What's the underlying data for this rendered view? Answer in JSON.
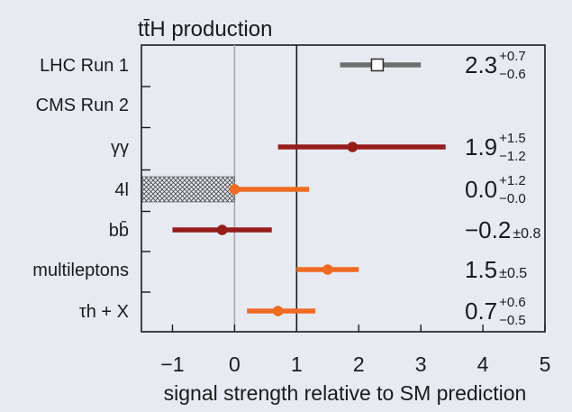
{
  "chart_data": {
    "type": "scatter",
    "title": "tt̄H production",
    "xlabel": "signal strength relative to SM prediction",
    "ylabel": "",
    "xlim": [
      -1.5,
      5
    ],
    "x_ticks": [
      -1,
      0,
      1,
      2,
      3,
      4,
      5
    ],
    "x_tick_labels": [
      "−1",
      "0",
      "1",
      "2",
      "3",
      "4",
      "5"
    ],
    "reference_lines": [
      0,
      1
    ],
    "rows": [
      {
        "label": "LHC Run 1",
        "kind": "measurement",
        "marker": "square",
        "color": "#6e6e6e",
        "value": 2.3,
        "err_plus": 0.7,
        "err_minus": 0.6,
        "value_text": "2.3",
        "err_plus_text": "+0.7",
        "err_minus_text": "−0.6"
      },
      {
        "label": "CMS Run 2",
        "kind": "header"
      },
      {
        "label": "γγ",
        "kind": "measurement",
        "marker": "circle",
        "color": "#961c1c",
        "value": 1.9,
        "err_plus": 1.5,
        "err_minus": 1.2,
        "value_text": "1.9",
        "err_plus_text": "+1.5",
        "err_minus_text": "−1.2"
      },
      {
        "label": "4l",
        "kind": "measurement",
        "marker": "circle",
        "color": "#ef6a22",
        "value": 0.0,
        "err_plus": 1.2,
        "err_minus": 0.0,
        "hatched_from": -1.5,
        "value_text": "0.0",
        "err_plus_text": "+1.2",
        "err_minus_text": "−0.0"
      },
      {
        "label": "bb̄",
        "kind": "measurement",
        "marker": "circle",
        "color": "#961c1c",
        "value": -0.2,
        "err_plus": 0.8,
        "err_minus": 0.8,
        "value_text": "−0.2",
        "err_sym_text": "±0.8"
      },
      {
        "label": "multileptons",
        "kind": "measurement",
        "marker": "circle",
        "color": "#ef6a22",
        "value": 1.5,
        "err_plus": 0.5,
        "err_minus": 0.5,
        "value_text": "1.5",
        "err_sym_text": "±0.5"
      },
      {
        "label": "τh + X",
        "kind": "measurement",
        "marker": "circle",
        "color": "#ef6a22",
        "value": 0.7,
        "err_plus": 0.6,
        "err_minus": 0.5,
        "value_text": "0.7",
        "err_plus_text": "+0.6",
        "err_minus_text": "−0.5"
      }
    ]
  }
}
